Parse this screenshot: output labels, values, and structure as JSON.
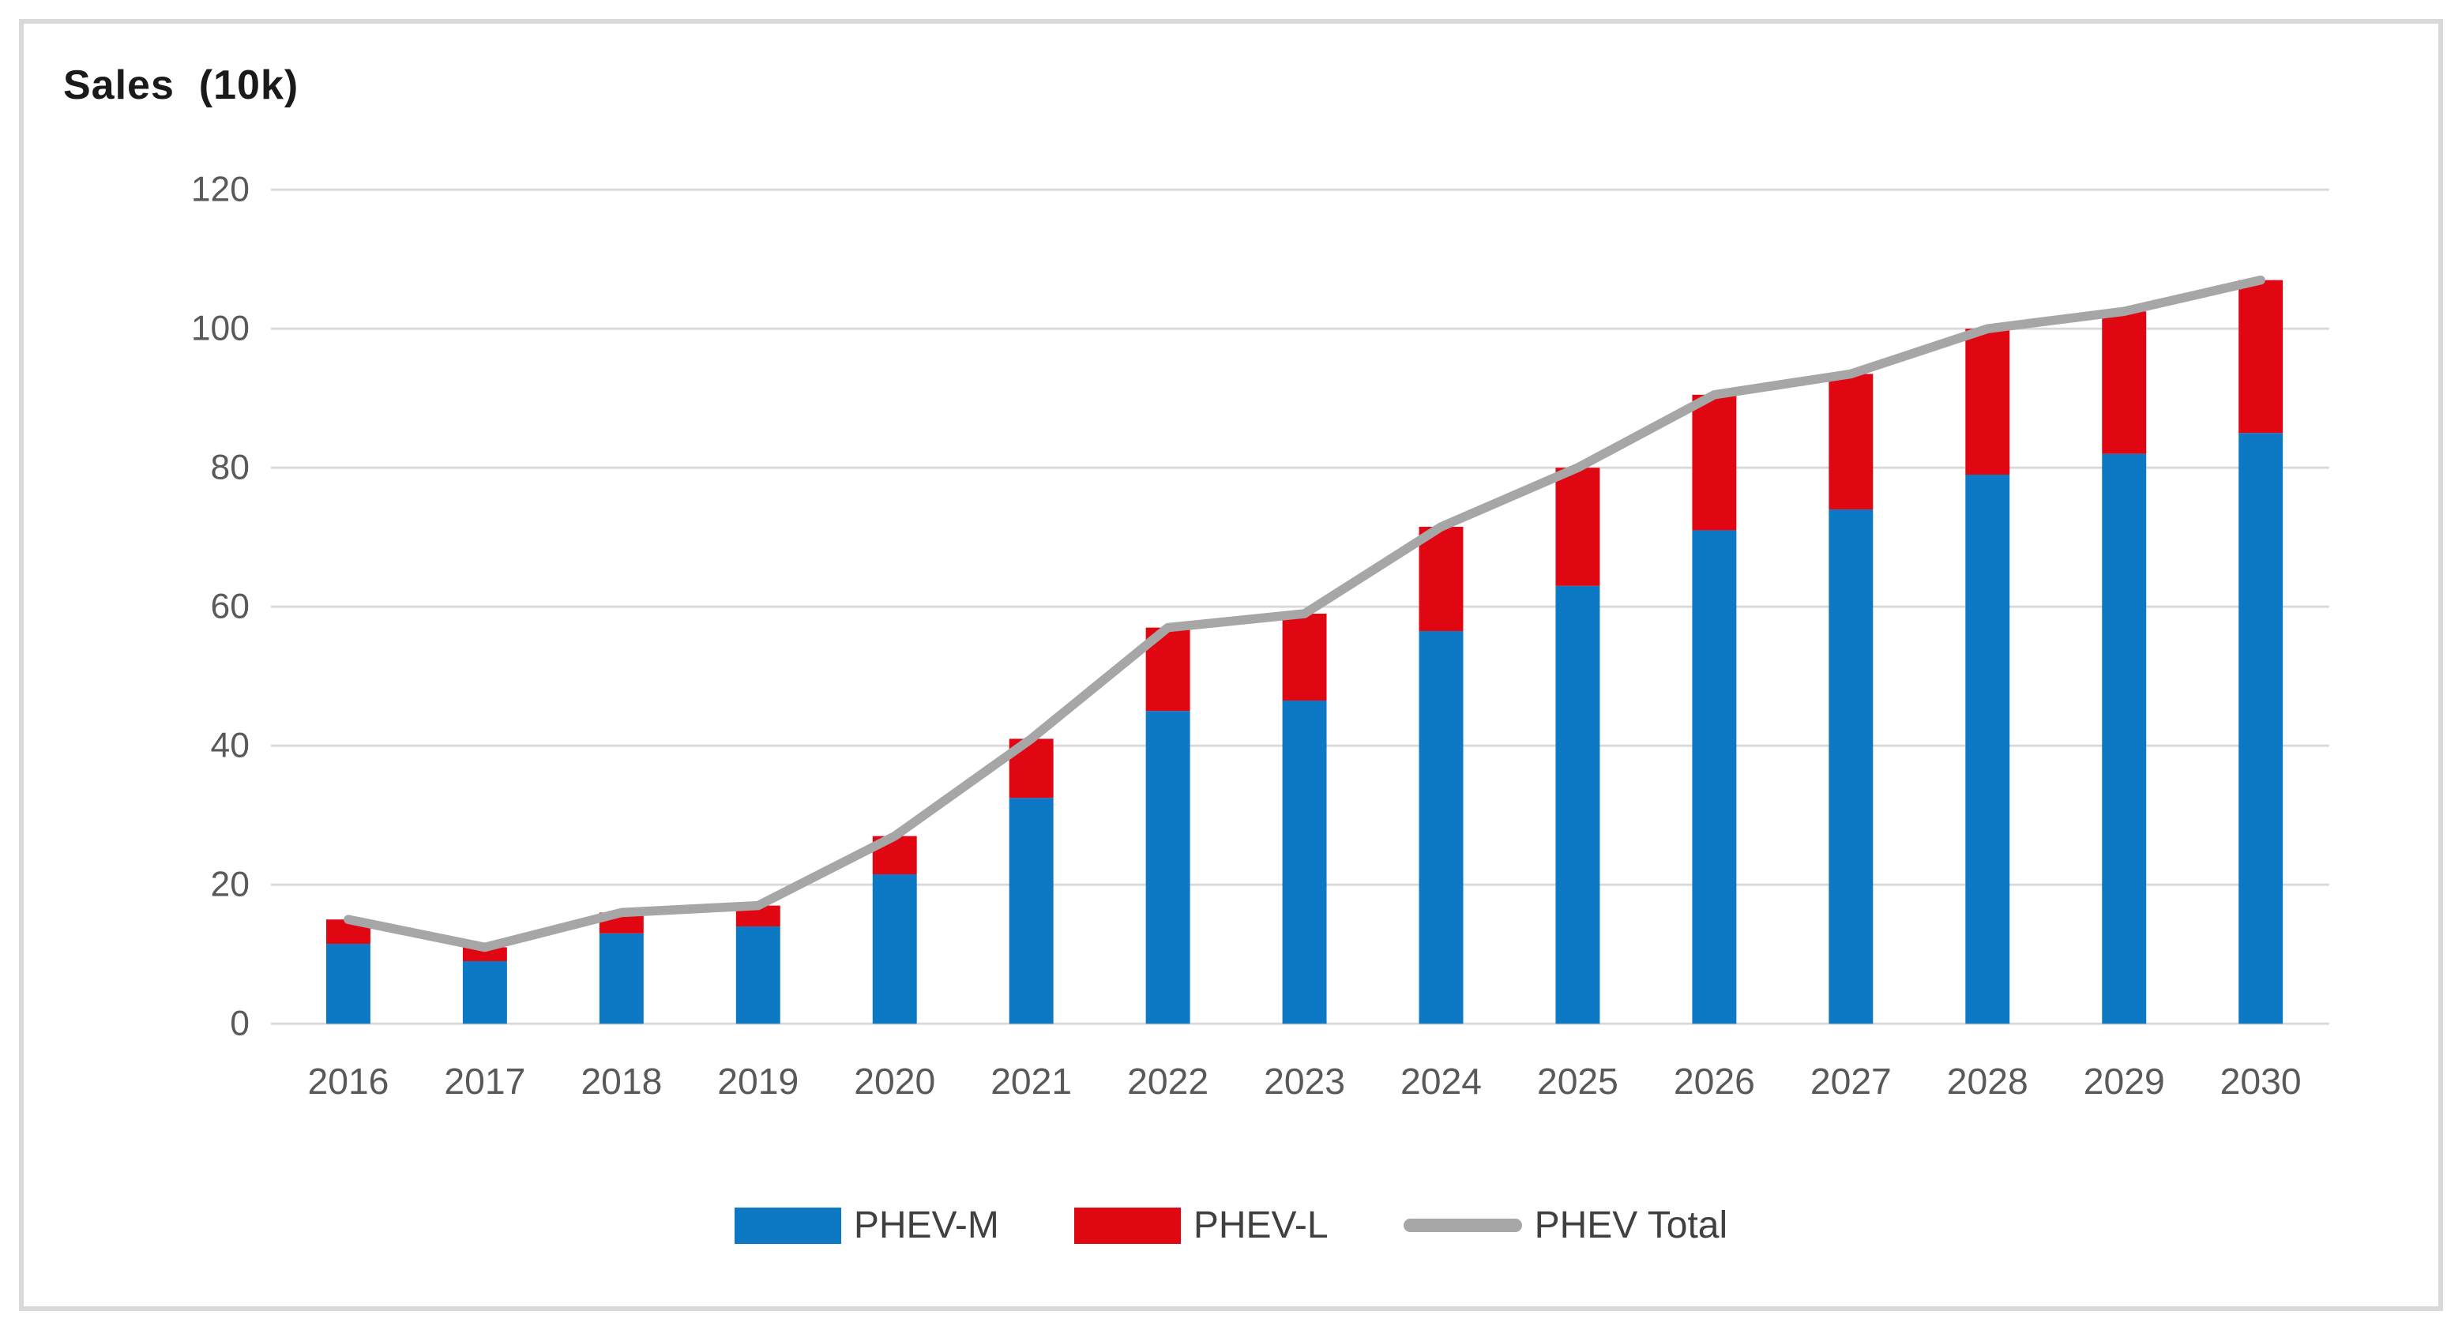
{
  "chart_data": {
    "type": "bar",
    "stacked": true,
    "title": "Sales  (10k)",
    "categories": [
      "2016",
      "2017",
      "2018",
      "2019",
      "2020",
      "2021",
      "2022",
      "2023",
      "2024",
      "2025",
      "2026",
      "2027",
      "2028",
      "2029",
      "2030"
    ],
    "series": [
      {
        "name": "PHEV-M",
        "type": "bar",
        "color": "#0d78c3",
        "values": [
          11.5,
          9,
          13,
          14,
          21.5,
          32.5,
          45,
          46.5,
          56.5,
          63,
          71,
          74,
          79,
          82,
          85
        ]
      },
      {
        "name": "PHEV-L",
        "type": "bar",
        "color": "#e00712",
        "values": [
          3.5,
          2,
          3,
          3,
          5.5,
          8.5,
          12,
          12.5,
          15,
          17,
          19.5,
          19.5,
          21,
          20.5,
          22
        ]
      },
      {
        "name": "PHEV Total",
        "type": "line",
        "color": "#a6a6a6",
        "values": [
          15,
          11,
          16,
          17,
          27,
          41,
          57,
          59,
          71.5,
          80,
          90.5,
          93.5,
          100,
          102.5,
          107
        ]
      }
    ],
    "xlabel": "",
    "ylabel": "Sales  (10k)",
    "ylim": [
      0,
      120
    ],
    "yticks": [
      0,
      20,
      40,
      60,
      80,
      100,
      120
    ],
    "grid": "horizontal",
    "legend_position": "bottom"
  },
  "colors": {
    "phev_m": "#0d78c3",
    "phev_l": "#e00712",
    "total_line": "#a6a6a6",
    "gridline": "#d9d9d9",
    "axis_text": "#595959",
    "legend_text": "#404040",
    "title_text": "#1a1a1a",
    "frame_border": "#d9d9d9",
    "background": "#ffffff"
  }
}
